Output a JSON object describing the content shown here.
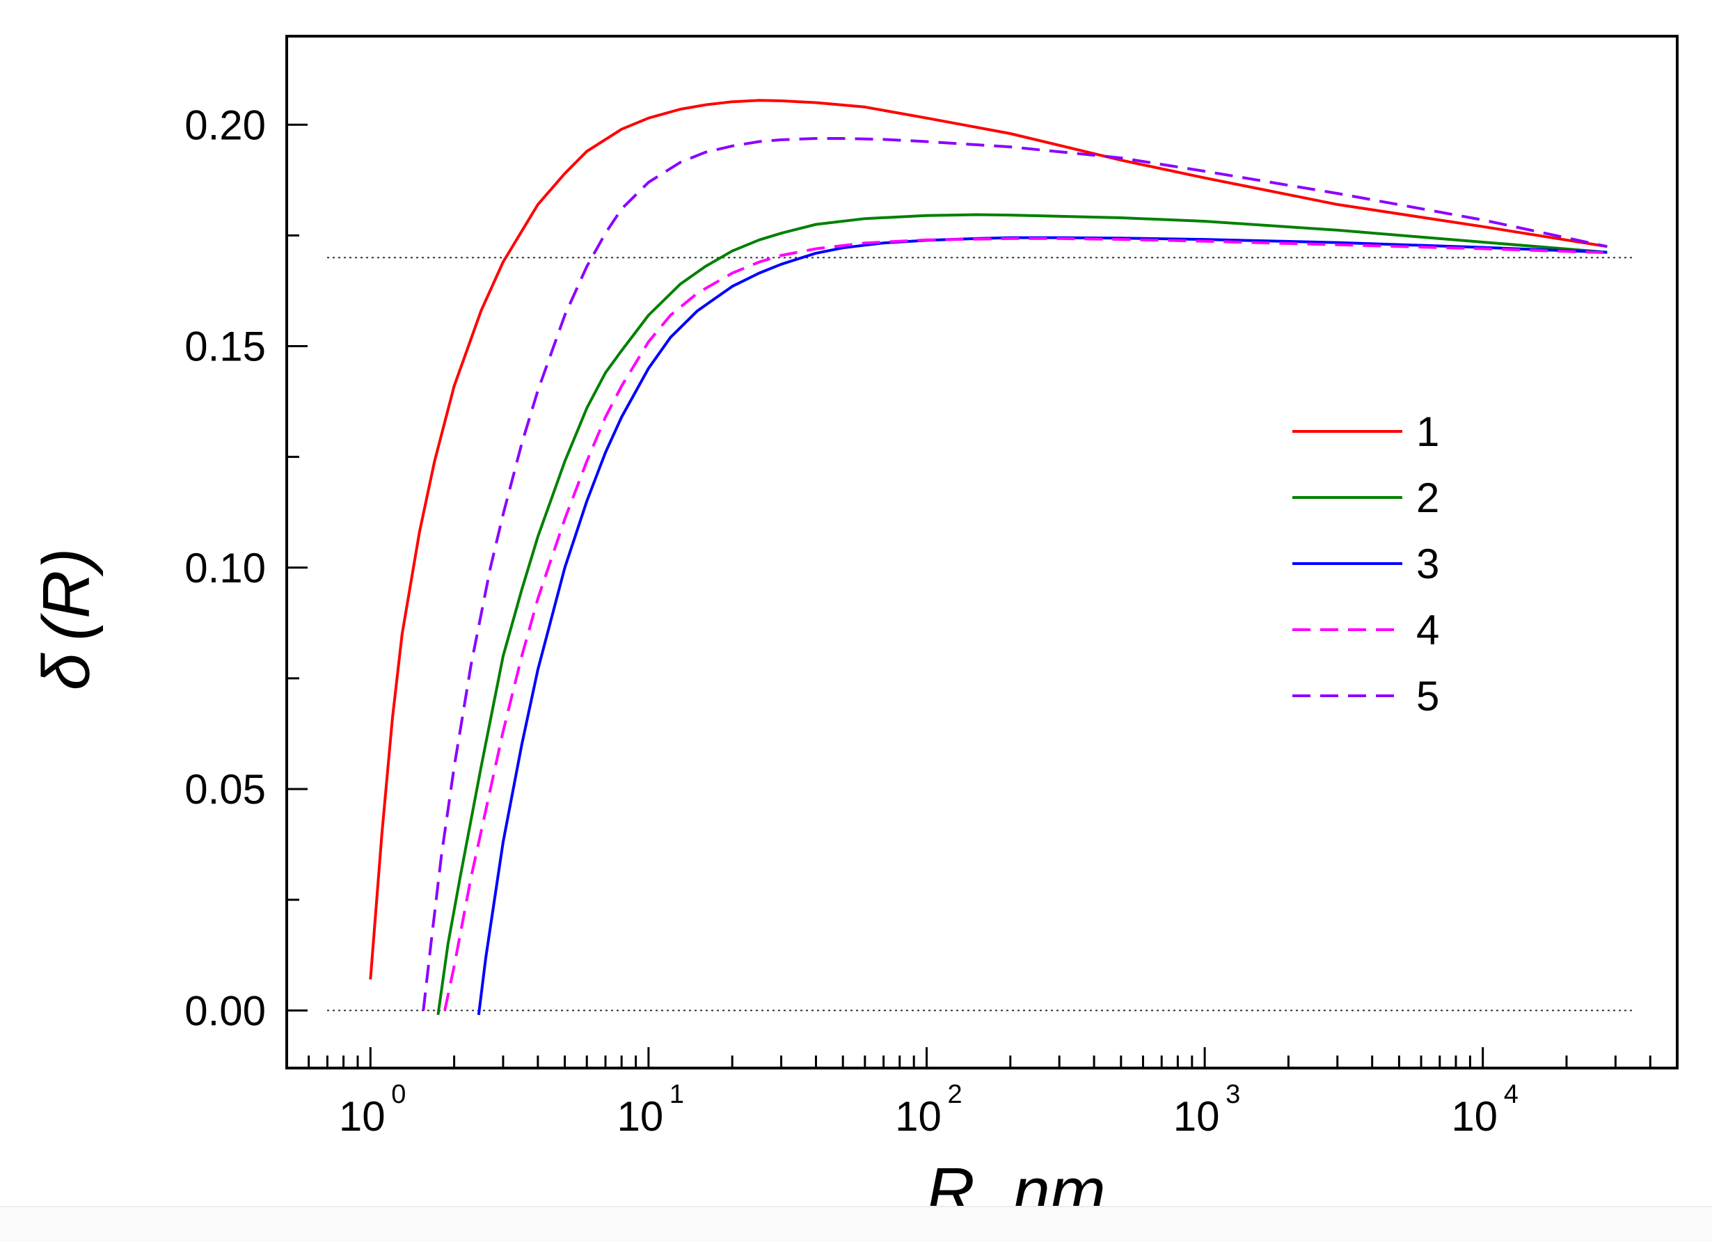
{
  "chart_data": {
    "type": "line",
    "title": "",
    "xlabel": {
      "var": "R",
      "sep": ",",
      "unit": "nm"
    },
    "ylabel": {
      "symbol": "δ",
      "open": "(",
      "var": "R",
      "close": ")"
    },
    "xscale": "log",
    "xlim": [
      0.5,
      50000
    ],
    "ylim": [
      -0.013,
      0.22
    ],
    "x_ticks": [
      {
        "base": "10",
        "exp": "0"
      },
      {
        "base": "10",
        "exp": "1"
      },
      {
        "base": "10",
        "exp": "2"
      },
      {
        "base": "10",
        "exp": "3"
      },
      {
        "base": "10",
        "exp": "4"
      }
    ],
    "y_ticks": [
      "0.00",
      "0.05",
      "0.10",
      "0.15",
      "0.20"
    ],
    "y_tick_values": [
      0.0,
      0.05,
      0.1,
      0.15,
      0.2
    ],
    "reference_lines": [
      0.17,
      0.0
    ],
    "legend_position": "center-right",
    "series": [
      {
        "name": "1",
        "color": "#ff0000",
        "style": "solid",
        "x": [
          1.0,
          1.1,
          1.2,
          1.3,
          1.5,
          1.7,
          2.0,
          2.5,
          3.0,
          4,
          5,
          6,
          8,
          10,
          13,
          16,
          20,
          25,
          30,
          40,
          60,
          100,
          200,
          500,
          1000,
          3000,
          10000,
          28000
        ],
        "y": [
          0.007,
          0.04,
          0.066,
          0.085,
          0.108,
          0.124,
          0.141,
          0.158,
          0.169,
          0.182,
          0.189,
          0.194,
          0.199,
          0.2015,
          0.2035,
          0.2045,
          0.2052,
          0.2055,
          0.2054,
          0.205,
          0.204,
          0.2015,
          0.198,
          0.192,
          0.188,
          0.182,
          0.177,
          0.1725
        ]
      },
      {
        "name": "2",
        "color": "#008000",
        "style": "solid",
        "x": [
          1.75,
          1.9,
          2.1,
          2.5,
          3,
          3.5,
          4,
          5,
          6,
          7,
          8,
          10,
          13,
          16,
          20,
          25,
          30,
          40,
          60,
          100,
          150,
          200,
          500,
          1000,
          3000,
          10000,
          28000
        ],
        "y": [
          -0.001,
          0.015,
          0.03,
          0.055,
          0.08,
          0.095,
          0.107,
          0.124,
          0.136,
          0.144,
          0.149,
          0.157,
          0.164,
          0.168,
          0.1715,
          0.174,
          0.1755,
          0.1775,
          0.1788,
          0.1795,
          0.1797,
          0.1796,
          0.179,
          0.1782,
          0.1762,
          0.1735,
          0.1712
        ]
      },
      {
        "name": "3",
        "color": "#0000ff",
        "style": "solid",
        "x": [
          2.45,
          2.6,
          3,
          3.5,
          4,
          5,
          6,
          7,
          8,
          10,
          12,
          15,
          20,
          25,
          30,
          40,
          50,
          70,
          100,
          150,
          200,
          300,
          500,
          1000,
          3000,
          10000,
          28000
        ],
        "y": [
          -0.001,
          0.012,
          0.038,
          0.06,
          0.077,
          0.1,
          0.115,
          0.126,
          0.134,
          0.145,
          0.152,
          0.158,
          0.1635,
          0.1665,
          0.1685,
          0.171,
          0.1722,
          0.1733,
          0.1739,
          0.1743,
          0.1745,
          0.1745,
          0.1744,
          0.1741,
          0.1734,
          0.1723,
          0.1712
        ]
      },
      {
        "name": "4",
        "color": "#ff00ff",
        "style": "dashed",
        "x": [
          1.85,
          2,
          2.3,
          2.7,
          3,
          3.5,
          4,
          5,
          6,
          7,
          8,
          10,
          12,
          15,
          20,
          25,
          30,
          40,
          60,
          100,
          200,
          300,
          500,
          1000,
          3000,
          10000,
          28000
        ],
        "y": [
          0.0,
          0.01,
          0.03,
          0.05,
          0.063,
          0.08,
          0.093,
          0.111,
          0.124,
          0.134,
          0.141,
          0.151,
          0.157,
          0.162,
          0.1665,
          0.169,
          0.1705,
          0.172,
          0.1733,
          0.174,
          0.1743,
          0.1743,
          0.1741,
          0.1737,
          0.1729,
          0.172,
          0.1711
        ]
      },
      {
        "name": "5",
        "color": "#8b00ff",
        "style": "dashed",
        "x": [
          1.55,
          1.65,
          1.8,
          2,
          2.3,
          2.7,
          3,
          3.5,
          4,
          5,
          6,
          7,
          8,
          10,
          13,
          16,
          20,
          25,
          30,
          40,
          50,
          70,
          100,
          200,
          500,
          1000,
          3000,
          10000,
          28000
        ],
        "y": [
          0.0,
          0.015,
          0.035,
          0.055,
          0.078,
          0.1,
          0.112,
          0.128,
          0.14,
          0.157,
          0.168,
          0.1755,
          0.181,
          0.187,
          0.1915,
          0.1938,
          0.1952,
          0.1962,
          0.1966,
          0.1969,
          0.1969,
          0.1967,
          0.1962,
          0.195,
          0.1925,
          0.1895,
          0.1845,
          0.1785,
          0.1725
        ]
      }
    ]
  }
}
